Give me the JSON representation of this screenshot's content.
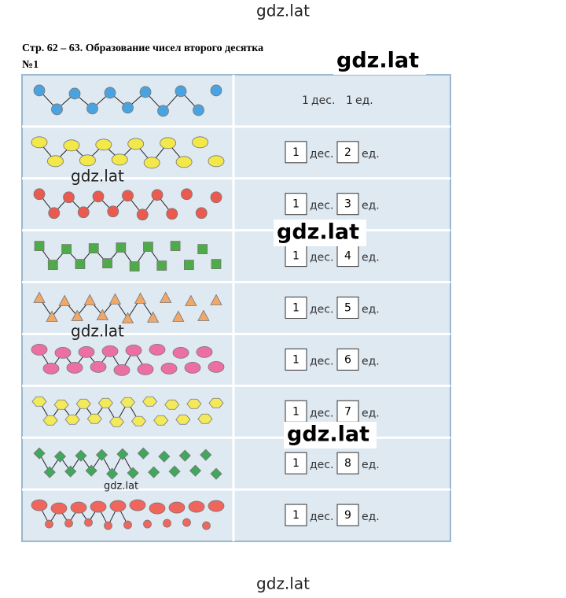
{
  "watermarks": [
    "gdz.lat",
    "gdz.lat",
    "gdz.lat",
    "gdz.lat",
    "gdz.lat",
    "gdz.lat",
    "gdz.lat",
    "gdz.lat"
  ],
  "header": {
    "title": "Стр. 62 – 63. Образование чисел второго десятка",
    "number": "№1"
  },
  "table": {
    "rows": [
      {
        "tens": "1",
        "tens_unit": "дес.",
        "ones": "1",
        "ones_unit": "ед."
      },
      {
        "tens": "1",
        "tens_unit": "дес.",
        "ones": "2",
        "ones_unit": "ед."
      },
      {
        "tens": "1",
        "tens_unit": "дес.",
        "ones": "3",
        "ones_unit": "ед."
      },
      {
        "tens": "1",
        "tens_unit": "дес.",
        "ones": "4",
        "ones_unit": "ед."
      },
      {
        "tens": "1",
        "tens_unit": "дес.",
        "ones": "5",
        "ones_unit": "ед."
      },
      {
        "tens": "1",
        "tens_unit": "дес.",
        "ones": "6",
        "ones_unit": "ед."
      },
      {
        "tens": "1",
        "tens_unit": "дес.",
        "ones": "7",
        "ones_unit": "ед."
      },
      {
        "tens": "1",
        "tens_unit": "дес.",
        "ones": "8",
        "ones_unit": "ед."
      },
      {
        "tens": "1",
        "tens_unit": "дес.",
        "ones": "9",
        "ones_unit": "ед."
      }
    ]
  }
}
